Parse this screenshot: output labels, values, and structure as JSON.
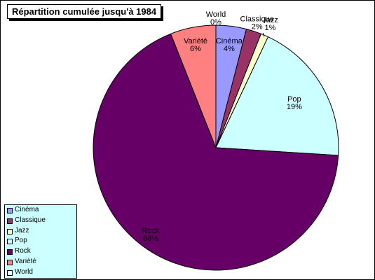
{
  "chart_data": {
    "type": "pie",
    "title": "Répartition cumulée jusqu'à 1984",
    "legend": "bottom-left",
    "slices": [
      {
        "name": "World",
        "value": 0,
        "label": "0%",
        "color": "#ffffff"
      },
      {
        "name": "Cinéma",
        "value": 4,
        "label": "4%",
        "color": "#9999ff"
      },
      {
        "name": "Classique",
        "value": 2,
        "label": "2%",
        "color": "#993366"
      },
      {
        "name": "Jazz",
        "value": 1,
        "label": "1%",
        "color": "#ffffcc"
      },
      {
        "name": "Pop",
        "value": 19,
        "label": "19%",
        "color": "#ccffff"
      },
      {
        "name": "Rock",
        "value": 68,
        "label": "68%",
        "color": "#660066"
      },
      {
        "name": "Variété",
        "value": 6,
        "label": "6%",
        "color": "#ff8080"
      }
    ],
    "legend_entries": [
      {
        "name": "Cinéma",
        "color": "#9999ff"
      },
      {
        "name": "Classique",
        "color": "#993366"
      },
      {
        "name": "Jazz",
        "color": "#ffffcc"
      },
      {
        "name": "Pop",
        "color": "#ccffff"
      },
      {
        "name": "Rock",
        "color": "#660066"
      },
      {
        "name": "Variété",
        "color": "#ff8080"
      },
      {
        "name": "World",
        "color": "#ffffff"
      }
    ]
  }
}
